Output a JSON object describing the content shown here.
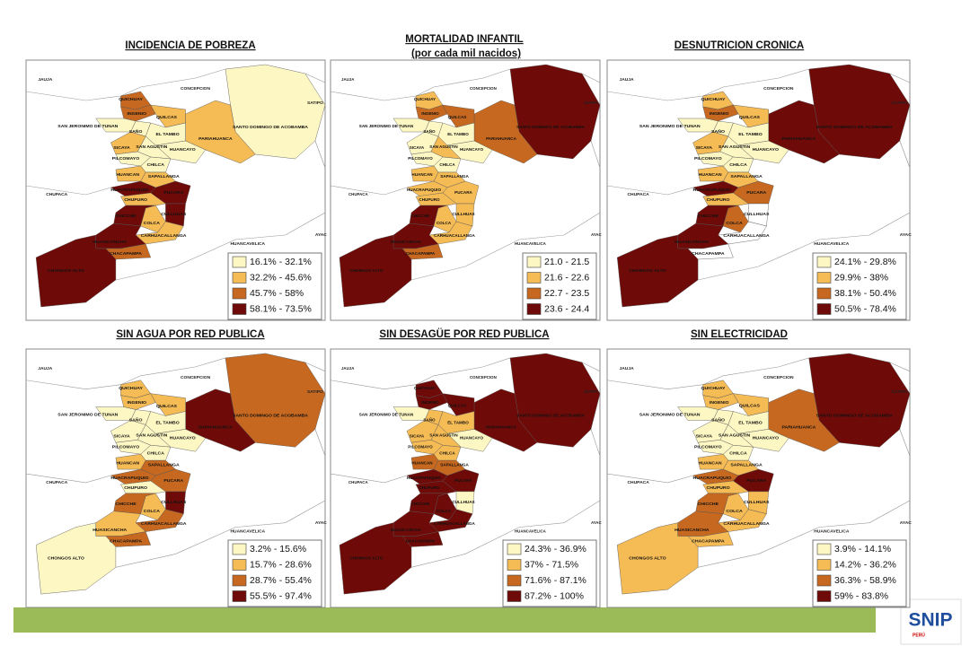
{
  "palette": [
    "#fdf7c3",
    "#f5bb55",
    "#c6681f",
    "#6e0b08"
  ],
  "districts": [
    "SANTO DOMINGO DE ACOBAMBA",
    "PARIAHUANCA",
    "QUICHUAY",
    "INGENIO",
    "QUILCAS",
    "SAN JERONIMO DE TUNAN",
    "SAÑO",
    "EL TAMBO",
    "HUANCAYO",
    "SICAYA",
    "SAN AGUSTIN",
    "PILCOMAYO",
    "CHILCA",
    "HUANCAN",
    "SAPALLANGA",
    "HUACRAPUQUIO",
    "PUCARA",
    "CHUPURO",
    "CULLHUAS",
    "CHICCHE",
    "COLCA",
    "CARHUACALLANGA",
    "HUASICANCHA",
    "CHACAPAMPA",
    "CHONGOS ALTO"
  ],
  "places": [
    "JAUJA",
    "CONCEPCION",
    "SATIPO",
    "CHUPACA",
    "HUANCAVELICA",
    "AYAC"
  ],
  "maps": [
    {
      "title": "INCIDENCIA DE POBREZA",
      "legend": [
        "16.1% - 32.1%",
        "32.2% - 45.6%",
        "45.7% - 58%",
        "58.1% - 73.5%"
      ],
      "district_classes": [
        0,
        1,
        2,
        2,
        1,
        0,
        0,
        0,
        0,
        1,
        0,
        0,
        0,
        1,
        1,
        3,
        3,
        1,
        3,
        3,
        1,
        1,
        3,
        2,
        3
      ]
    },
    {
      "title": "MORTALIDAD INFANTIL",
      "subtitle": "(por cada mil nacidos)",
      "legend": [
        "21.0 - 21.5",
        "21.6 - 22.6",
        "22.7 - 23.5",
        "23.6 - 24.4"
      ],
      "district_classes": [
        3,
        2,
        1,
        2,
        2,
        0,
        0,
        0,
        0,
        0,
        1,
        0,
        0,
        1,
        1,
        1,
        1,
        1,
        1,
        3,
        1,
        1,
        3,
        2,
        3
      ]
    },
    {
      "title": "DESNUTRICION CRONICA",
      "legend": [
        "24.1% - 29.8%",
        "29.9% - 38%",
        "38.1% - 50.4%",
        "50.5% - 78.4%"
      ],
      "district_classes": [
        3,
        3,
        1,
        2,
        1,
        0,
        0,
        0,
        0,
        1,
        0,
        0,
        0,
        1,
        1,
        3,
        2,
        1,
        null,
        3,
        2,
        null,
        3,
        null,
        3
      ]
    },
    {
      "title": "SIN AGUA POR RED PUBLICA",
      "legend": [
        "3.2% - 15.6%",
        "15.7% - 28.6%",
        "28.7% - 55.4%",
        "55.5% - 97.4%"
      ],
      "district_classes": [
        2,
        3,
        1,
        1,
        1,
        0,
        0,
        0,
        0,
        0,
        0,
        0,
        0,
        1,
        2,
        2,
        2,
        0,
        3,
        2,
        1,
        2,
        1,
        2,
        0
      ]
    },
    {
      "title": "SIN DESAGÜE POR RED PUBLICA",
      "legend": [
        "24.3% - 36.9%",
        "37% - 71.5%",
        "71.6% - 87.1%",
        "87.2% - 100%"
      ],
      "district_classes": [
        3,
        3,
        3,
        3,
        3,
        0,
        1,
        1,
        0,
        1,
        1,
        1,
        1,
        2,
        2,
        3,
        3,
        3,
        0,
        3,
        3,
        3,
        3,
        3,
        3
      ]
    },
    {
      "title": "SIN ELECTRICIDAD",
      "legend": [
        "3.9% - 14.1%",
        "14.2% - 36.2%",
        "36.3% - 58.9%",
        "59% - 83.8%"
      ],
      "district_classes": [
        3,
        2,
        1,
        1,
        1,
        0,
        0,
        0,
        0,
        0,
        0,
        0,
        0,
        1,
        1,
        2,
        3,
        1,
        1,
        2,
        1,
        1,
        2,
        1,
        1
      ]
    }
  ],
  "logo": "SNIP",
  "logo_sub": "PERÚ"
}
